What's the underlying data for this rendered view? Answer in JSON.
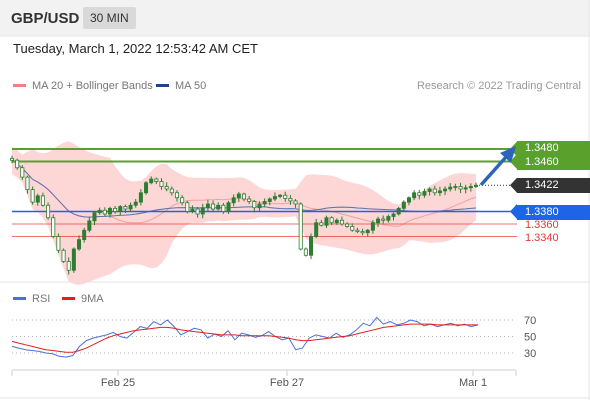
{
  "header": {
    "symbol": "GBP/USD",
    "timeframe": "30 MIN",
    "datetime": "Tuesday, March 1, 2022 12:53:42 AM CET"
  },
  "legend": {
    "ma20": "MA 20 + Bollinger Bands",
    "ma50": "MA 50",
    "ma20_color": "#f08080",
    "ma50_color": "#1f3f8f",
    "credit": "Research © 2022 Trading Central"
  },
  "rsi_legend": {
    "rsi": "RSI",
    "ma9": "9MA",
    "rsi_color": "#4a70d8",
    "ma9_color": "#e02020"
  },
  "price_labels": {
    "r1": "1.3480",
    "r2": "1.3460",
    "current": "1.3422",
    "pivot": "1.3380",
    "s1": "1.3360",
    "s2": "1.3340"
  },
  "rsi_levels": [
    "70",
    "50",
    "30"
  ],
  "x_ticks": [
    "Feb 25",
    "Feb 27",
    "Mar 1"
  ],
  "colors": {
    "resistance": "#5aa02c",
    "pivot": "#1e64e6",
    "support": "#e53935",
    "bollinger": "#fdd6d6",
    "candle": "#2e7d32",
    "current": "#333333"
  },
  "chart_data": {
    "type": "candlestick",
    "timeframe": "30 MIN",
    "ylim": [
      1.326,
      1.35
    ],
    "levels": {
      "resistance": [
        1.348,
        1.346
      ],
      "current": 1.3422,
      "pivot": 1.338,
      "support": [
        1.336,
        1.334
      ]
    },
    "close_path": [
      1.3462,
      1.345,
      1.3435,
      1.3415,
      1.3395,
      1.3405,
      1.339,
      1.337,
      1.334,
      1.3318,
      1.33,
      1.3286,
      1.332,
      1.3335,
      1.335,
      1.3365,
      1.3378,
      1.3382,
      1.3376,
      1.3385,
      1.338,
      1.3388,
      1.3384,
      1.339,
      1.3395,
      1.341,
      1.3426,
      1.3432,
      1.3428,
      1.342,
      1.3416,
      1.341,
      1.3402,
      1.3394,
      1.338,
      1.3384,
      1.3376,
      1.3386,
      1.3392,
      1.3384,
      1.339,
      1.338,
      1.3394,
      1.3402,
      1.3408,
      1.34,
      1.3396,
      1.3386,
      1.3392,
      1.3396,
      1.34,
      1.3404,
      1.3406,
      1.3401,
      1.3397,
      1.3392,
      1.332,
      1.331,
      1.334,
      1.3362,
      1.3358,
      1.337,
      1.3362,
      1.3366,
      1.336,
      1.3356,
      1.335,
      1.3348,
      1.3346,
      1.335,
      1.3362,
      1.3368,
      1.3366,
      1.3372,
      1.3376,
      1.3385,
      1.3395,
      1.3402,
      1.341,
      1.3406,
      1.3412,
      1.3416,
      1.341,
      1.3413,
      1.3416,
      1.3419,
      1.342,
      1.3416,
      1.3418,
      1.342,
      1.3422
    ],
    "rsi": {
      "levels": [
        70,
        50,
        30
      ],
      "ylim": [
        15,
        85
      ],
      "rsi_path": [
        38,
        36,
        34,
        33,
        32,
        30,
        29,
        26,
        25,
        27,
        38,
        45,
        48,
        50,
        52,
        55,
        50,
        48,
        55,
        62,
        60,
        68,
        64,
        70,
        62,
        52,
        56,
        60,
        58,
        48,
        53,
        50,
        57,
        46,
        54,
        52,
        49,
        51,
        56,
        50,
        46,
        48,
        34,
        36,
        48,
        52,
        50,
        48,
        54,
        49,
        52,
        58,
        66,
        63,
        73,
        65,
        68,
        64,
        66,
        70,
        68,
        63,
        65,
        62,
        64,
        66,
        63,
        65,
        62,
        64
      ],
      "ma9_path": [
        44,
        42,
        40,
        38,
        36,
        34,
        33,
        32,
        31,
        31,
        33,
        36,
        40,
        44,
        48,
        51,
        53,
        55,
        57,
        58,
        59,
        60,
        61,
        61,
        60,
        58,
        57,
        56,
        55,
        54,
        53,
        52,
        52,
        52,
        51,
        51,
        51,
        51,
        51,
        50,
        49,
        48,
        46,
        45,
        45,
        46,
        47,
        48,
        49,
        50,
        51,
        53,
        55,
        57,
        59,
        61,
        62,
        63,
        64,
        65,
        65,
        65,
        65,
        64,
        64,
        64,
        64,
        64,
        64,
        64
      ]
    }
  }
}
